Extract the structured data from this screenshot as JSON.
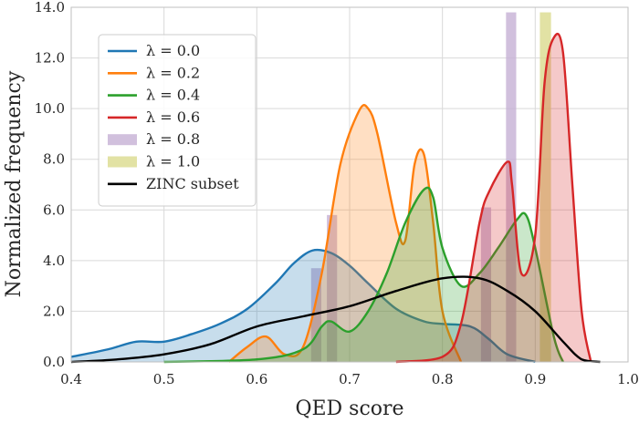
{
  "chart_data": {
    "type": "area",
    "xlabel": "QED score",
    "ylabel": "Normalized frequency",
    "xlim": [
      0.4,
      1.0
    ],
    "ylim": [
      0.0,
      14.0
    ],
    "xticks": [
      "0.4",
      "0.5",
      "0.6",
      "0.7",
      "0.8",
      "0.9",
      "1.0"
    ],
    "yticks": [
      "0.0",
      "2.0",
      "4.0",
      "6.0",
      "8.0",
      "10.0",
      "12.0",
      "14.0"
    ],
    "grid": true,
    "legend_position": "upper-left",
    "series": [
      {
        "name": "λ = 0.0",
        "kind": "kde",
        "color": "#1f77b4",
        "x": [
          0.4,
          0.44,
          0.47,
          0.5,
          0.53,
          0.56,
          0.59,
          0.62,
          0.64,
          0.66,
          0.68,
          0.7,
          0.72,
          0.75,
          0.78,
          0.8,
          0.83,
          0.85,
          0.87,
          0.9
        ],
        "y": [
          0.2,
          0.5,
          0.8,
          0.8,
          1.1,
          1.5,
          2.1,
          3.1,
          3.9,
          4.4,
          4.3,
          3.8,
          3.1,
          2.1,
          1.6,
          1.5,
          1.4,
          0.9,
          0.3,
          0.0
        ]
      },
      {
        "name": "λ = 0.2",
        "kind": "kde",
        "color": "#ff7f0e",
        "x": [
          0.57,
          0.59,
          0.61,
          0.63,
          0.65,
          0.67,
          0.69,
          0.71,
          0.72,
          0.73,
          0.75,
          0.76,
          0.77,
          0.78,
          0.79,
          0.8,
          0.82
        ],
        "y": [
          0.0,
          0.6,
          1.0,
          0.3,
          0.6,
          3.5,
          7.8,
          9.9,
          10.0,
          9.0,
          5.5,
          4.8,
          7.8,
          8.2,
          5.5,
          2.0,
          0.0
        ]
      },
      {
        "name": "λ = 0.4",
        "kind": "kde",
        "color": "#2ca02c",
        "x": [
          0.5,
          0.6,
          0.65,
          0.67,
          0.68,
          0.7,
          0.72,
          0.74,
          0.76,
          0.78,
          0.79,
          0.8,
          0.82,
          0.84,
          0.86,
          0.88,
          0.89,
          0.9,
          0.92,
          0.93
        ],
        "y": [
          0.0,
          0.1,
          0.5,
          1.4,
          1.6,
          1.2,
          2.0,
          3.5,
          5.5,
          6.8,
          6.5,
          4.5,
          3.0,
          3.5,
          4.5,
          5.6,
          5.8,
          4.5,
          1.0,
          0.0
        ]
      },
      {
        "name": "λ = 0.6",
        "kind": "kde",
        "color": "#d62728",
        "x": [
          0.75,
          0.8,
          0.82,
          0.84,
          0.85,
          0.87,
          0.875,
          0.885,
          0.9,
          0.91,
          0.92,
          0.93,
          0.94,
          0.95,
          0.96
        ],
        "y": [
          0.0,
          0.2,
          1.5,
          5.5,
          6.7,
          7.9,
          7.0,
          3.5,
          5.0,
          11.0,
          12.8,
          12.2,
          7.0,
          2.0,
          0.0
        ]
      },
      {
        "name": "λ = 0.8",
        "kind": "bar",
        "color": "#c5b0d5",
        "x": [
          0.664,
          0.681,
          0.847,
          0.874
        ],
        "y": [
          3.7,
          5.8,
          6.1,
          13.8
        ],
        "width": 0.011
      },
      {
        "name": "λ = 1.0",
        "kind": "bar",
        "color": "#dbdb8d",
        "x": [
          0.911
        ],
        "y": [
          13.8
        ],
        "width": 0.012
      },
      {
        "name": "ZINC subset",
        "kind": "line",
        "color": "#000000",
        "x": [
          0.4,
          0.45,
          0.5,
          0.55,
          0.6,
          0.65,
          0.7,
          0.75,
          0.8,
          0.84,
          0.87,
          0.9,
          0.93,
          0.95,
          0.97
        ],
        "y": [
          0.0,
          0.1,
          0.3,
          0.7,
          1.4,
          1.8,
          2.2,
          2.8,
          3.3,
          3.3,
          2.8,
          2.0,
          0.8,
          0.1,
          0.0
        ]
      }
    ]
  }
}
